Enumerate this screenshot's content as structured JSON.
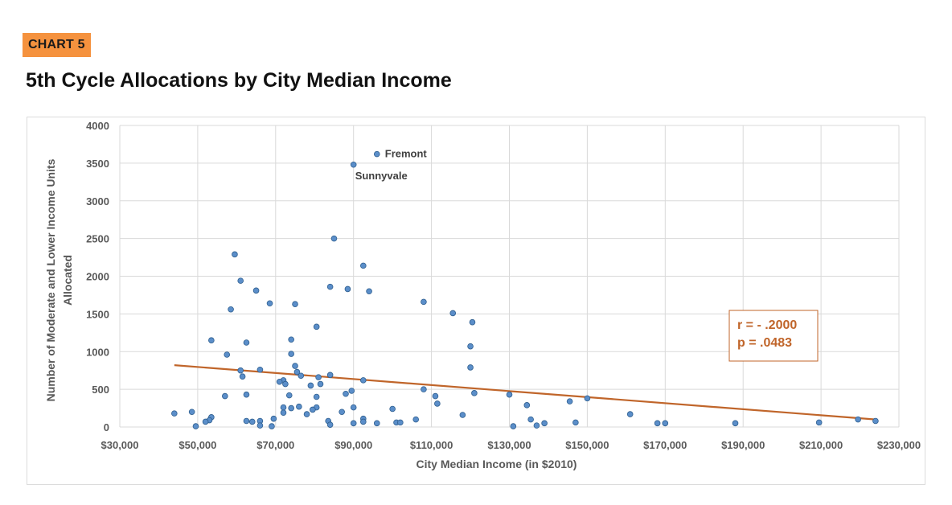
{
  "header": {
    "tag": "CHART 5",
    "title": "5th Cycle Allocations by City Median Income"
  },
  "colors": {
    "tag_background": "#f5923e",
    "point_fill": "#5b8ec9",
    "point_stroke": "#2f5f8f",
    "trendline": "#c0652a",
    "gridline": "#d9d9d9"
  },
  "chart_data": {
    "type": "scatter",
    "xlabel": "City Median Income (in $2010)",
    "ylabel_lines": [
      "Number of Moderate and Lower Income Units",
      "Allocated"
    ],
    "xlim": [
      30000,
      230000
    ],
    "ylim": [
      0,
      4000
    ],
    "x_ticks": [
      30000,
      50000,
      70000,
      90000,
      110000,
      130000,
      150000,
      170000,
      190000,
      210000,
      230000
    ],
    "x_tick_labels": [
      "$30,000",
      "$50,000",
      "$70,000",
      "$90,000",
      "$110,000",
      "$130,000",
      "$150,000",
      "$170,000",
      "$190,000",
      "$210,000",
      "$230,000"
    ],
    "y_ticks": [
      0,
      500,
      1000,
      1500,
      2000,
      2500,
      3000,
      3500,
      4000
    ],
    "y_tick_labels": [
      "0",
      "500",
      "1000",
      "1500",
      "2000",
      "2500",
      "3000",
      "3500",
      "4000"
    ],
    "grid": true,
    "legend": "none",
    "points": [
      {
        "x": 96000,
        "y": 3620,
        "label": "Fremont"
      },
      {
        "x": 90000,
        "y": 3480,
        "label": "Sunnyvale"
      },
      {
        "x": 85000,
        "y": 2500
      },
      {
        "x": 59500,
        "y": 2290
      },
      {
        "x": 92500,
        "y": 2140
      },
      {
        "x": 61000,
        "y": 1940
      },
      {
        "x": 84000,
        "y": 1860
      },
      {
        "x": 88500,
        "y": 1830
      },
      {
        "x": 65000,
        "y": 1810
      },
      {
        "x": 94000,
        "y": 1800
      },
      {
        "x": 108000,
        "y": 1660
      },
      {
        "x": 68500,
        "y": 1640
      },
      {
        "x": 75000,
        "y": 1630
      },
      {
        "x": 58500,
        "y": 1560
      },
      {
        "x": 115500,
        "y": 1510
      },
      {
        "x": 120500,
        "y": 1390
      },
      {
        "x": 80500,
        "y": 1330
      },
      {
        "x": 53500,
        "y": 1150
      },
      {
        "x": 74000,
        "y": 1160
      },
      {
        "x": 62500,
        "y": 1120
      },
      {
        "x": 120000,
        "y": 1070
      },
      {
        "x": 74000,
        "y": 970
      },
      {
        "x": 57500,
        "y": 960
      },
      {
        "x": 75000,
        "y": 810
      },
      {
        "x": 120000,
        "y": 790
      },
      {
        "x": 66000,
        "y": 760
      },
      {
        "x": 61000,
        "y": 750
      },
      {
        "x": 75500,
        "y": 730
      },
      {
        "x": 84000,
        "y": 690
      },
      {
        "x": 61500,
        "y": 670
      },
      {
        "x": 81000,
        "y": 660
      },
      {
        "x": 76500,
        "y": 680
      },
      {
        "x": 92500,
        "y": 620
      },
      {
        "x": 72000,
        "y": 620
      },
      {
        "x": 71000,
        "y": 600
      },
      {
        "x": 72500,
        "y": 570
      },
      {
        "x": 81500,
        "y": 570
      },
      {
        "x": 79000,
        "y": 550
      },
      {
        "x": 108000,
        "y": 500
      },
      {
        "x": 89500,
        "y": 480
      },
      {
        "x": 121000,
        "y": 450
      },
      {
        "x": 88000,
        "y": 440
      },
      {
        "x": 130000,
        "y": 430
      },
      {
        "x": 62500,
        "y": 430
      },
      {
        "x": 73500,
        "y": 420
      },
      {
        "x": 57000,
        "y": 410
      },
      {
        "x": 80500,
        "y": 400
      },
      {
        "x": 111000,
        "y": 410
      },
      {
        "x": 150000,
        "y": 380
      },
      {
        "x": 145500,
        "y": 340
      },
      {
        "x": 111500,
        "y": 310
      },
      {
        "x": 134500,
        "y": 290
      },
      {
        "x": 72000,
        "y": 260
      },
      {
        "x": 74000,
        "y": 250
      },
      {
        "x": 90000,
        "y": 260
      },
      {
        "x": 76000,
        "y": 270
      },
      {
        "x": 80500,
        "y": 260
      },
      {
        "x": 100000,
        "y": 240
      },
      {
        "x": 79500,
        "y": 230
      },
      {
        "x": 87000,
        "y": 200
      },
      {
        "x": 48500,
        "y": 200
      },
      {
        "x": 44000,
        "y": 180
      },
      {
        "x": 72000,
        "y": 190
      },
      {
        "x": 78000,
        "y": 170
      },
      {
        "x": 161000,
        "y": 170
      },
      {
        "x": 118000,
        "y": 160
      },
      {
        "x": 53500,
        "y": 130
      },
      {
        "x": 92500,
        "y": 110
      },
      {
        "x": 106000,
        "y": 100
      },
      {
        "x": 69500,
        "y": 110
      },
      {
        "x": 135500,
        "y": 100
      },
      {
        "x": 53000,
        "y": 90
      },
      {
        "x": 219500,
        "y": 100
      },
      {
        "x": 224000,
        "y": 80
      },
      {
        "x": 52000,
        "y": 70
      },
      {
        "x": 62500,
        "y": 80
      },
      {
        "x": 64000,
        "y": 70
      },
      {
        "x": 66000,
        "y": 80
      },
      {
        "x": 83500,
        "y": 80
      },
      {
        "x": 92500,
        "y": 70
      },
      {
        "x": 101000,
        "y": 60
      },
      {
        "x": 102000,
        "y": 60
      },
      {
        "x": 90000,
        "y": 50
      },
      {
        "x": 96000,
        "y": 50
      },
      {
        "x": 139000,
        "y": 50
      },
      {
        "x": 147000,
        "y": 60
      },
      {
        "x": 168000,
        "y": 50
      },
      {
        "x": 170000,
        "y": 50
      },
      {
        "x": 188000,
        "y": 50
      },
      {
        "x": 209500,
        "y": 60
      },
      {
        "x": 66000,
        "y": 20
      },
      {
        "x": 84000,
        "y": 30
      },
      {
        "x": 49500,
        "y": 10
      },
      {
        "x": 69000,
        "y": 10
      },
      {
        "x": 131000,
        "y": 10
      },
      {
        "x": 137000,
        "y": 20
      }
    ],
    "trendline": {
      "x": [
        44000,
        224000
      ],
      "y": [
        820,
        100
      ]
    },
    "annotation": {
      "lines": [
        "r = - .2000",
        "p = .0483"
      ]
    }
  }
}
